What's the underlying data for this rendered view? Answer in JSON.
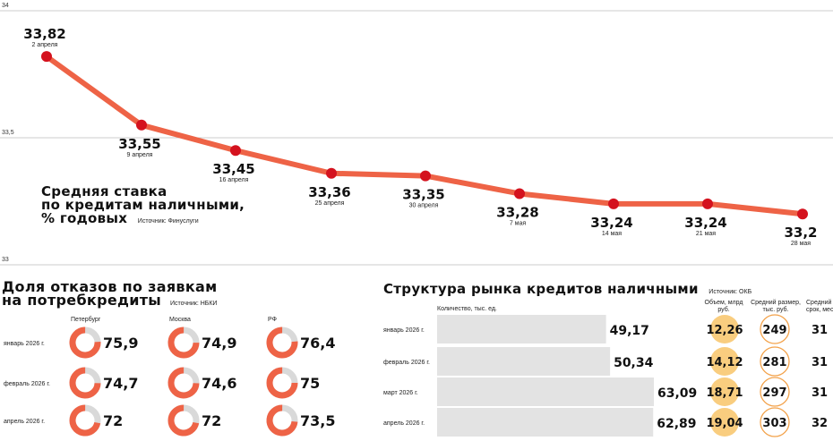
{
  "line_chart": {
    "title_lines": [
      "Средняя ставка",
      "по кредитам наличными,",
      "% годовых"
    ],
    "source": "Источник: Финуслуги",
    "colors": {
      "line": "#ee6346",
      "point": "#d4121e",
      "grid": "#bdbdbd"
    }
  },
  "refusals": {
    "title_lines": [
      "Доля отказов по заявкам",
      "на потребкредиты"
    ],
    "source": "Источник: НБКИ",
    "colors": {
      "filled": "#ee6346",
      "rest": "#d9d9d9"
    }
  },
  "structure": {
    "title": "Структура рынка кредитов наличными",
    "source": "Источник: ОКБ",
    "col_quantity": "Количество, тыс. ед.",
    "col_volume": "Объем, млрд руб.",
    "col_avg_size": "Средний размер, тыс. руб.",
    "col_avg_term": "Средний срок, мес",
    "colors": {
      "bar": "#e3e3e3",
      "volume_circle": "#f9cd7f",
      "size_circle_border": "#f3a24a"
    }
  },
  "chart_data": [
    {
      "type": "line",
      "title": "Средняя ставка по кредитам наличными, % годовых",
      "x": [
        "2 апреля",
        "9 апреля",
        "16 апреля",
        "25 апреля",
        "30 апреля",
        "7 мая",
        "14 мая",
        "21 мая",
        "28 мая"
      ],
      "values": [
        33.82,
        33.55,
        33.45,
        33.36,
        33.35,
        33.28,
        33.24,
        33.24,
        33.2
      ],
      "value_labels": [
        "33,82",
        "33,55",
        "33,45",
        "33,36",
        "33,35",
        "33,28",
        "33,24",
        "33,24",
        "33,2"
      ],
      "y_ticks": [
        "34",
        "33,5",
        "33"
      ],
      "ylim": [
        33,
        34
      ],
      "grid": true
    },
    {
      "type": "pie",
      "title": "Доля отказов по заявкам на потребкредиты",
      "categories": [
        "январь 2026 г.",
        "февраль 2026 г.",
        "апрель 2026 г."
      ],
      "series": [
        {
          "name": "Петербург",
          "values": [
            75.9,
            74.7,
            72
          ],
          "labels": [
            "75,9",
            "74,7",
            "72"
          ]
        },
        {
          "name": "Москва",
          "values": [
            74.9,
            74.6,
            72
          ],
          "labels": [
            "74,9",
            "74,6",
            "72"
          ]
        },
        {
          "name": "РФ",
          "values": [
            76.4,
            75,
            73.5
          ],
          "labels": [
            "76,4",
            "75",
            "73,5"
          ]
        }
      ]
    },
    {
      "type": "bar",
      "title": "Структура рынка кредитов наличными",
      "categories": [
        "январь 2026 г.",
        "февраль 2026 г.",
        "март 2026 г.",
        "апрель 2026 г."
      ],
      "series": [
        {
          "name": "Количество, тыс. ед.",
          "values": [
            49.17,
            50.34,
            63.09,
            62.89
          ],
          "labels": [
            "49,17",
            "50,34",
            "63,09",
            "62,89"
          ]
        },
        {
          "name": "Объем, млрд руб.",
          "values": [
            12.26,
            14.12,
            18.71,
            19.04
          ],
          "labels": [
            "12,26",
            "14,12",
            "18,71",
            "19,04"
          ]
        },
        {
          "name": "Средний размер, тыс. руб.",
          "values": [
            249,
            281,
            297,
            303
          ],
          "labels": [
            "249",
            "281",
            "297",
            "303"
          ]
        },
        {
          "name": "Средний срок, мес",
          "values": [
            31,
            31,
            31,
            32
          ],
          "labels": [
            "31",
            "31",
            "31",
            "32"
          ]
        }
      ],
      "xlim": [
        0,
        63.09
      ]
    }
  ]
}
